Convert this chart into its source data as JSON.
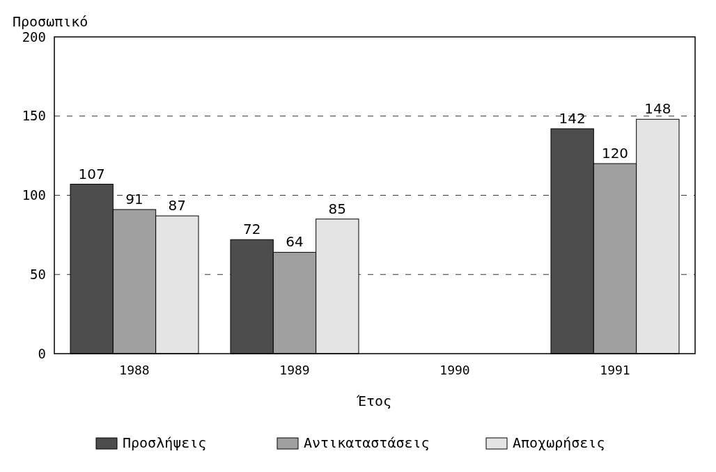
{
  "chart_data": {
    "type": "bar",
    "xlabel": "Έτος",
    "ylabel": "Προσωπικό",
    "categories": [
      "1988",
      "1989",
      "1990",
      "1991"
    ],
    "series": [
      {
        "name": "Προσλήψεις",
        "color": "#4d4d4d",
        "values": [
          107,
          72,
          null,
          142
        ]
      },
      {
        "name": "Αντικαταστάσεις",
        "color": "#a0a0a0",
        "values": [
          91,
          64,
          null,
          120
        ]
      },
      {
        "name": "Αποχωρήσεις",
        "color": "#e4e4e4",
        "values": [
          87,
          85,
          null,
          148
        ]
      }
    ],
    "ylim": [
      0,
      200
    ],
    "yticks": [
      0,
      50,
      100,
      150,
      200
    ],
    "grid": "y",
    "line_style": "dashed",
    "legend": "bottom",
    "data_labels": true
  }
}
